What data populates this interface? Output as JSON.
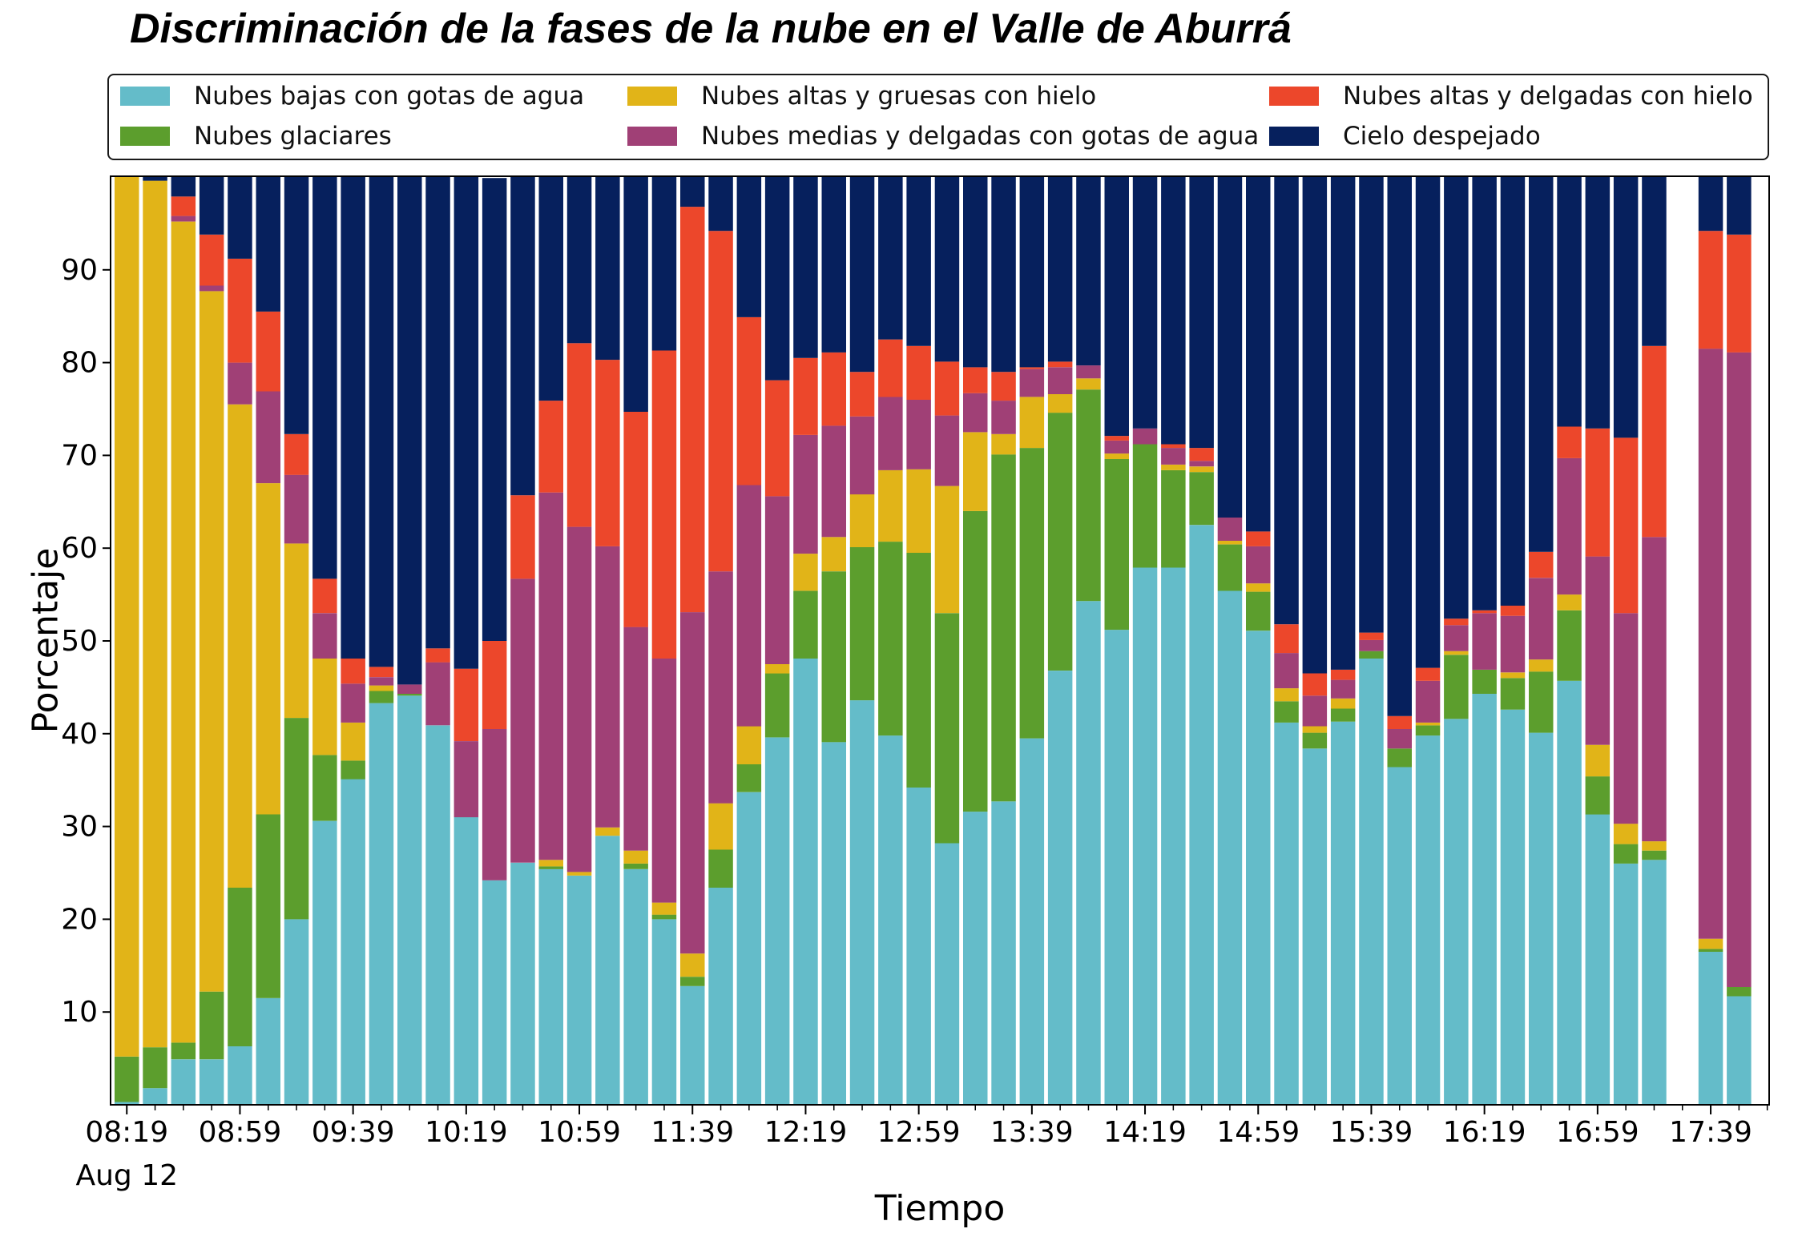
{
  "chart_data": {
    "type": "bar",
    "stacked": true,
    "title": "Discriminación de la fases de la nube en el Valle de Aburrá",
    "xlabel": "Tiempo",
    "ylabel": "Porcentaje",
    "ylim": [
      0,
      100
    ],
    "yticks": [
      10,
      20,
      30,
      40,
      50,
      60,
      70,
      80,
      90
    ],
    "grid": false,
    "legend_position": "top",
    "x_tick_labels": [
      {
        "slot": 0,
        "label": "08:19"
      },
      {
        "slot": 4,
        "label": "08:59"
      },
      {
        "slot": 8,
        "label": "09:39"
      },
      {
        "slot": 12,
        "label": "10:19"
      },
      {
        "slot": 16,
        "label": "10:59"
      },
      {
        "slot": 20,
        "label": "11:39"
      },
      {
        "slot": 24,
        "label": "12:19"
      },
      {
        "slot": 28,
        "label": "12:59"
      },
      {
        "slot": 32,
        "label": "13:39"
      },
      {
        "slot": 36,
        "label": "14:19"
      },
      {
        "slot": 40,
        "label": "14:59"
      },
      {
        "slot": 44,
        "label": "15:39"
      },
      {
        "slot": 48,
        "label": "16:19"
      },
      {
        "slot": 52,
        "label": "16:59"
      },
      {
        "slot": 56,
        "label": "17:39"
      }
    ],
    "date_label": "Aug 12",
    "x_slots": [
      "08:19",
      "08:29",
      "08:39",
      "08:49",
      "08:59",
      "09:09",
      "09:19",
      "09:29",
      "09:39",
      "09:49",
      "09:59",
      "10:09",
      "10:19",
      "10:29",
      "10:39",
      "10:49",
      "10:59",
      "11:09",
      "11:19",
      "11:29",
      "11:39",
      "11:49",
      "11:59",
      "12:09",
      "12:19",
      "12:29",
      "12:39",
      "12:49",
      "12:59",
      "13:09",
      "13:19",
      "13:29",
      "13:39",
      "13:49",
      "13:59",
      "14:09",
      "14:19",
      "14:29",
      "14:39",
      "14:49",
      "14:59",
      "15:09",
      "15:19",
      "15:29",
      "15:39",
      "15:49",
      "15:59",
      "16:09",
      "16:19",
      "16:29",
      "16:39",
      "16:49",
      "16:59",
      "17:09",
      "17:19",
      "17:29",
      "17:39",
      "17:49"
    ],
    "missing_slots": [
      55
    ],
    "series": [
      {
        "name": "Nubes bajas con gotas de agua",
        "color": "#64bcc9",
        "values": [
          0.3,
          1.8,
          4.9,
          4.9,
          6.3,
          11.5,
          20.0,
          30.6,
          35.1,
          43.3,
          44.1,
          40.9,
          31.0,
          24.2,
          26.1,
          25.4,
          24.7,
          29.0,
          25.4,
          20.0,
          12.8,
          23.4,
          33.7,
          39.6,
          48.1,
          39.1,
          43.6,
          39.8,
          34.2,
          28.2,
          31.6,
          32.7,
          39.5,
          46.8,
          54.3,
          51.2,
          57.9,
          57.9,
          62.5,
          55.4,
          51.1,
          41.2,
          38.4,
          41.3,
          48.1,
          36.4,
          39.8,
          41.6,
          44.3,
          42.6,
          40.1,
          45.7,
          31.3,
          26.0,
          26.4,
          null,
          16.5,
          11.7
        ]
      },
      {
        "name": "Nubes glaciares",
        "color": "#5c9e2d",
        "values": [
          4.9,
          4.4,
          1.8,
          7.3,
          17.1,
          19.8,
          21.7,
          7.1,
          2.0,
          1.3,
          0.2,
          0,
          0,
          0,
          0,
          0.3,
          0,
          0,
          0.6,
          0.5,
          1.0,
          4.1,
          3.0,
          6.9,
          7.3,
          18.4,
          16.5,
          20.9,
          25.3,
          24.8,
          32.4,
          37.4,
          31.3,
          27.8,
          22.8,
          18.4,
          13.3,
          10.5,
          5.7,
          5.0,
          4.2,
          2.3,
          1.7,
          1.4,
          0.8,
          2.0,
          1.1,
          6.9,
          2.6,
          3.4,
          6.6,
          7.6,
          4.1,
          2.1,
          1.0,
          null,
          0.3,
          1.0
        ]
      },
      {
        "name": "Nubes altas y gruesas con hielo",
        "color": "#e1b418",
        "values": [
          94.8,
          93.4,
          88.5,
          75.5,
          52.1,
          35.7,
          18.8,
          10.4,
          4.1,
          0.6,
          0,
          0,
          0,
          0,
          0,
          0.7,
          0.4,
          0.9,
          1.4,
          1.3,
          2.5,
          5.0,
          4.1,
          1.0,
          4.0,
          3.7,
          5.7,
          7.7,
          9.0,
          13.7,
          8.5,
          2.2,
          5.5,
          2.0,
          1.2,
          0.6,
          0,
          0.6,
          0.6,
          0.4,
          0.9,
          1.4,
          0.7,
          1.1,
          0,
          0,
          0.3,
          0.4,
          0,
          0.6,
          1.3,
          1.7,
          3.4,
          2.2,
          1.0,
          null,
          1.1,
          0
        ]
      },
      {
        "name": "Nubes medias y delgadas con gotas de agua",
        "color": "#a04076",
        "values": [
          0,
          0,
          0.6,
          0.6,
          4.5,
          9.9,
          7.4,
          4.9,
          4.2,
          0.9,
          1.0,
          6.8,
          8.2,
          16.3,
          30.6,
          39.6,
          37.2,
          30.3,
          24.1,
          26.3,
          36.8,
          25.0,
          26.0,
          18.1,
          12.8,
          12.0,
          8.4,
          7.9,
          7.5,
          7.6,
          4.2,
          3.6,
          3.0,
          2.9,
          1.4,
          1.4,
          1.7,
          1.8,
          0.6,
          2.5,
          4.0,
          3.8,
          3.3,
          2.0,
          1.2,
          2.1,
          4.5,
          2.8,
          6.1,
          6.1,
          8.8,
          14.7,
          20.3,
          22.7,
          32.8,
          null,
          63.6,
          68.4
        ]
      },
      {
        "name": "Nubes altas y delgadas con hielo",
        "color": "#ec472b",
        "values": [
          0.4,
          0,
          2.1,
          5.5,
          11.2,
          8.6,
          4.4,
          3.7,
          2.7,
          1.1,
          0,
          1.5,
          7.8,
          9.5,
          9.0,
          9.9,
          19.8,
          20.1,
          23.2,
          33.2,
          43.7,
          36.7,
          18.1,
          12.5,
          8.3,
          7.9,
          4.8,
          6.2,
          5.8,
          5.8,
          2.8,
          3.1,
          0.2,
          0.6,
          0,
          0.5,
          0,
          0.4,
          1.4,
          0,
          1.6,
          3.1,
          2.4,
          1.1,
          0.8,
          1.4,
          1.4,
          0.7,
          0.3,
          1.1,
          2.8,
          3.4,
          13.8,
          18.9,
          20.6,
          null,
          12.7,
          12.7
        ]
      },
      {
        "name": "Cielo despejado",
        "color": "#06205d",
        "values": [
          0,
          0.4,
          2.1,
          6.2,
          8.8,
          14.5,
          27.7,
          43.3,
          51.9,
          52.8,
          54.7,
          50.8,
          53.0,
          49.9,
          34.3,
          24.1,
          17.9,
          19.7,
          25.3,
          18.7,
          3.2,
          5.8,
          15.1,
          21.9,
          19.5,
          18.9,
          21.0,
          17.5,
          18.2,
          19.9,
          20.5,
          21.0,
          20.5,
          19.9,
          20.3,
          27.9,
          27.1,
          28.8,
          29.2,
          36.7,
          38.2,
          48.2,
          53.5,
          53.1,
          49.1,
          58.1,
          52.9,
          47.6,
          46.7,
          46.2,
          40.4,
          26.9,
          27.1,
          28.1,
          18.2,
          null,
          5.8,
          6.2
        ]
      }
    ]
  }
}
